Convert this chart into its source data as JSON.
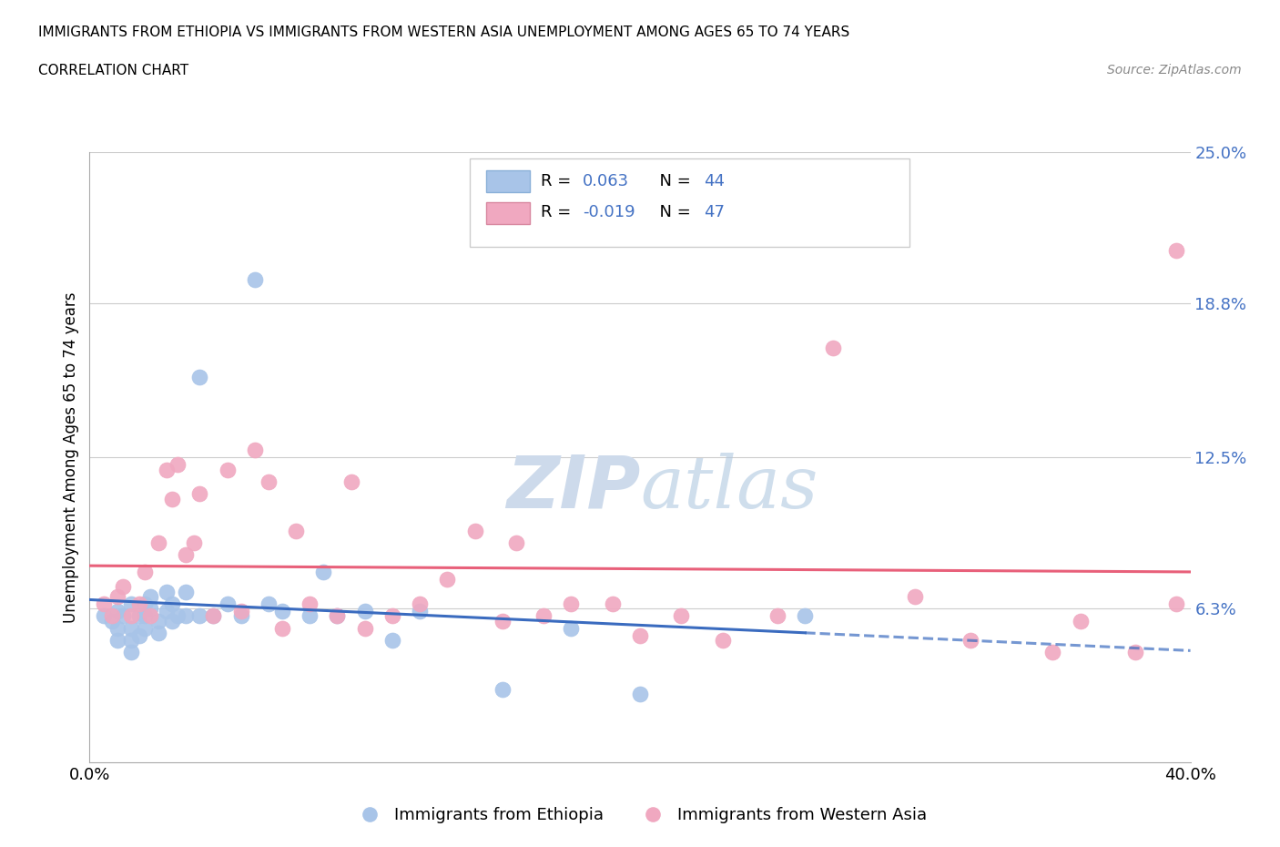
{
  "title_line1": "IMMIGRANTS FROM ETHIOPIA VS IMMIGRANTS FROM WESTERN ASIA UNEMPLOYMENT AMONG AGES 65 TO 74 YEARS",
  "title_line2": "CORRELATION CHART",
  "source_text": "Source: ZipAtlas.com",
  "ylabel": "Unemployment Among Ages 65 to 74 years",
  "xlim": [
    0.0,
    0.4
  ],
  "ylim": [
    -0.01,
    0.27
  ],
  "plot_ylim": [
    0.0,
    0.25
  ],
  "xticks": [
    0.0,
    0.1,
    0.2,
    0.3,
    0.4
  ],
  "xticklabels": [
    "0.0%",
    "",
    "",
    "",
    "40.0%"
  ],
  "ytick_vals": [
    0.063,
    0.125,
    0.188,
    0.25
  ],
  "yticklabels": [
    "6.3%",
    "12.5%",
    "18.8%",
    "25.0%"
  ],
  "ethiopia_color": "#a8c4e8",
  "western_asia_color": "#f0a8c0",
  "ethiopia_line_color": "#3a6bbf",
  "western_asia_line_color": "#e8607a",
  "ethiopia_R": 0.063,
  "ethiopia_N": 44,
  "western_asia_R": -0.019,
  "western_asia_N": 47,
  "legend_R_color": "#4472c4",
  "watermark_color": "#cddaeb",
  "ethiopia_x": [
    0.005,
    0.008,
    0.01,
    0.01,
    0.01,
    0.012,
    0.015,
    0.015,
    0.015,
    0.015,
    0.018,
    0.018,
    0.02,
    0.02,
    0.02,
    0.022,
    0.022,
    0.025,
    0.025,
    0.028,
    0.028,
    0.03,
    0.03,
    0.032,
    0.035,
    0.035,
    0.04,
    0.04,
    0.045,
    0.05,
    0.055,
    0.06,
    0.065,
    0.07,
    0.08,
    0.085,
    0.09,
    0.1,
    0.11,
    0.12,
    0.15,
    0.175,
    0.2,
    0.26
  ],
  "ethiopia_y": [
    0.06,
    0.058,
    0.062,
    0.055,
    0.05,
    0.06,
    0.065,
    0.055,
    0.05,
    0.045,
    0.06,
    0.052,
    0.065,
    0.06,
    0.055,
    0.068,
    0.063,
    0.058,
    0.053,
    0.07,
    0.062,
    0.065,
    0.058,
    0.06,
    0.07,
    0.06,
    0.158,
    0.06,
    0.06,
    0.065,
    0.06,
    0.198,
    0.065,
    0.062,
    0.06,
    0.078,
    0.06,
    0.062,
    0.05,
    0.062,
    0.03,
    0.055,
    0.028,
    0.06
  ],
  "western_asia_x": [
    0.005,
    0.008,
    0.01,
    0.012,
    0.015,
    0.018,
    0.02,
    0.022,
    0.025,
    0.028,
    0.03,
    0.032,
    0.035,
    0.038,
    0.04,
    0.045,
    0.05,
    0.055,
    0.06,
    0.065,
    0.07,
    0.075,
    0.08,
    0.09,
    0.095,
    0.1,
    0.11,
    0.12,
    0.13,
    0.14,
    0.15,
    0.155,
    0.165,
    0.175,
    0.19,
    0.2,
    0.215,
    0.23,
    0.25,
    0.27,
    0.3,
    0.32,
    0.35,
    0.36,
    0.38,
    0.395,
    0.395
  ],
  "western_asia_y": [
    0.065,
    0.06,
    0.068,
    0.072,
    0.06,
    0.065,
    0.078,
    0.06,
    0.09,
    0.12,
    0.108,
    0.122,
    0.085,
    0.09,
    0.11,
    0.06,
    0.12,
    0.062,
    0.128,
    0.115,
    0.055,
    0.095,
    0.065,
    0.06,
    0.115,
    0.055,
    0.06,
    0.065,
    0.075,
    0.095,
    0.058,
    0.09,
    0.06,
    0.065,
    0.065,
    0.052,
    0.06,
    0.05,
    0.06,
    0.17,
    0.068,
    0.05,
    0.045,
    0.058,
    0.045,
    0.065,
    0.21
  ]
}
